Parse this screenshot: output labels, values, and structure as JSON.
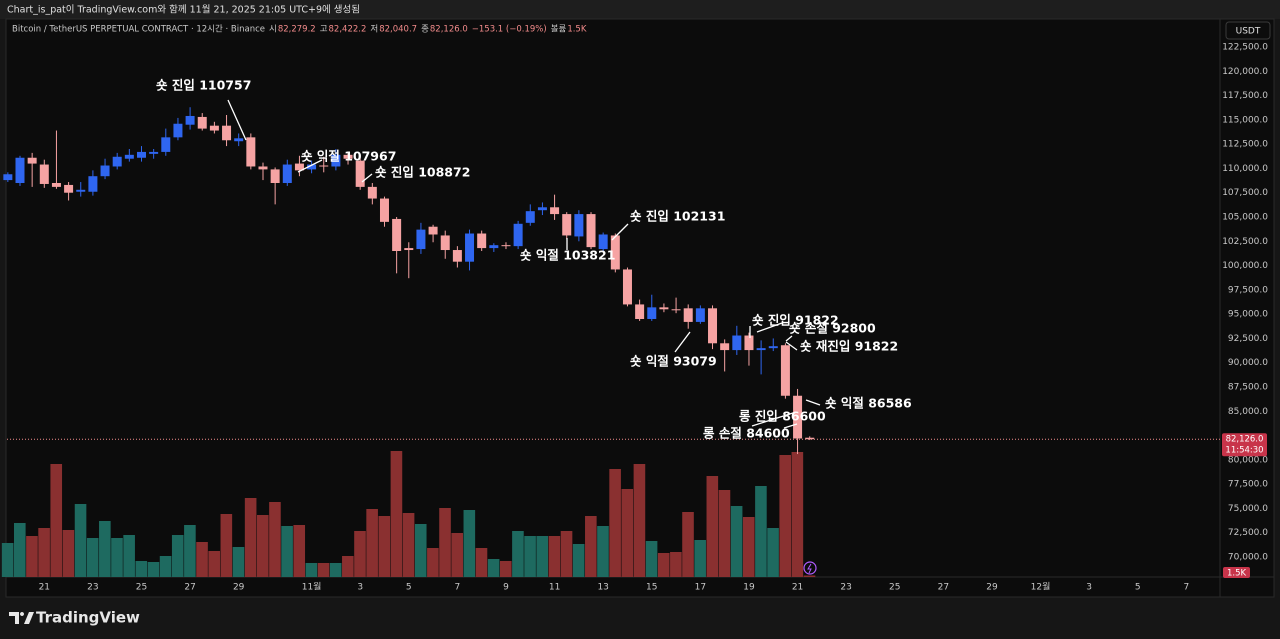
{
  "header": {
    "caption": "Chart_is_pat이 TradingView.com와 함께 11월 21, 2025 21:05 UTC+9에 생성됨",
    "brand": "TradingView"
  },
  "chart_data": {
    "type": "candlestick",
    "title": "Bitcoin / TetherUS PERPETUAL CONTRACT · 12시간 · Binance",
    "legend": {
      "items": [
        {
          "label": "시",
          "value": "82,279.2"
        },
        {
          "label": "고",
          "value": "82,422.2"
        },
        {
          "label": "저",
          "value": "82,040.7"
        },
        {
          "label": "종",
          "value": "82,126.0"
        }
      ],
      "change": "−153.1 (−0.19%)",
      "volume_name": "볼륨",
      "volume_value": "1.5K"
    },
    "currency": "USDT",
    "countdown": "11:54:30",
    "open": [
      108800,
      108500,
      111100,
      110400,
      108500,
      108300,
      107600,
      107600,
      109200,
      110200,
      111000,
      111100,
      111500,
      111700,
      113200,
      114500,
      115300,
      114400,
      114400,
      112800,
      113200,
      110200,
      109900,
      108500,
      110500,
      109900,
      110300,
      110200,
      111400,
      110800,
      108100,
      106900,
      104800,
      101800,
      101700,
      104000,
      103100,
      101600,
      100400,
      103300,
      101800,
      102100,
      102000,
      104400,
      105700,
      106000,
      105300,
      103000,
      105300,
      101700,
      103100,
      99600,
      96000,
      94500,
      95700,
      95500,
      95600,
      94200,
      95600,
      92000,
      91300,
      92800,
      91300,
      91500,
      91800,
      86600,
      82279.2
    ],
    "high": [
      109600,
      111300,
      111600,
      110900,
      113900,
      108600,
      108600,
      109800,
      111000,
      111600,
      112000,
      112300,
      112000,
      114100,
      115200,
      116300,
      115700,
      114800,
      115500,
      113600,
      113600,
      110600,
      110100,
      110900,
      111300,
      110800,
      111200,
      112000,
      111700,
      111200,
      108500,
      107100,
      105000,
      102400,
      104400,
      104200,
      103600,
      102000,
      103700,
      103600,
      102300,
      102400,
      104600,
      106300,
      106500,
      107300,
      105500,
      105700,
      105500,
      103400,
      103300,
      99800,
      96500,
      97000,
      96100,
      96700,
      96000,
      95900,
      95900,
      92400,
      93800,
      93100,
      92300,
      92500,
      92000,
      87300,
      82422.2
    ],
    "low": [
      108600,
      108200,
      108100,
      108000,
      107900,
      106700,
      107100,
      107200,
      108900,
      109900,
      110700,
      110700,
      111000,
      111300,
      112900,
      114000,
      113900,
      113600,
      112300,
      112300,
      109900,
      108800,
      106300,
      108200,
      109200,
      109500,
      109600,
      109800,
      110400,
      107800,
      106300,
      104000,
      99200,
      98700,
      101200,
      102400,
      100700,
      99800,
      99500,
      101500,
      101400,
      101700,
      101700,
      104100,
      105200,
      104700,
      102700,
      102500,
      101700,
      101400,
      99300,
      95800,
      94300,
      94300,
      95200,
      95100,
      93500,
      94000,
      91400,
      89100,
      90800,
      89700,
      88800,
      91200,
      86300,
      80600,
      82040.7
    ],
    "close": [
      109400,
      111100,
      110500,
      108400,
      108100,
      107500,
      107800,
      109200,
      110300,
      111200,
      111400,
      111700,
      111700,
      113200,
      114600,
      115400,
      114100,
      113900,
      112900,
      113100,
      110200,
      109900,
      108500,
      110400,
      109800,
      110400,
      110200,
      111400,
      111000,
      108100,
      106900,
      104500,
      101500,
      101600,
      103700,
      103200,
      101600,
      100400,
      103300,
      101800,
      102100,
      102000,
      104300,
      105600,
      106000,
      105300,
      103100,
      105300,
      101900,
      103200,
      99600,
      96000,
      94500,
      95700,
      95500,
      95400,
      94200,
      95600,
      92000,
      91300,
      92800,
      91300,
      91500,
      91700,
      86600,
      82200,
      82126
    ],
    "volume": [
      34,
      54,
      41,
      49,
      113,
      47,
      73,
      39,
      56,
      39,
      42,
      16,
      15,
      21,
      42,
      52,
      35,
      26,
      63,
      30,
      79,
      62,
      75,
      51,
      52,
      14,
      14,
      14,
      21,
      46,
      68,
      61,
      126,
      64,
      53,
      29,
      69,
      44,
      67,
      29,
      18,
      16,
      46,
      41,
      41,
      41,
      46,
      33,
      61,
      51,
      108,
      88,
      113,
      36,
      24,
      25,
      65,
      37,
      101,
      87,
      71,
      60,
      91,
      49,
      122,
      125,
      1.5
    ],
    "up_color": "#2f66f0",
    "down_color": "#f6a3a3",
    "volume_up_color": "#1e6a60",
    "volume_down_color": "#8a3030",
    "grid": false,
    "ylim": [
      67942,
      125279
    ],
    "yticks": [
      {
        "value": 122500,
        "label": "122,500.0"
      },
      {
        "value": 120000,
        "label": "120,000.0"
      },
      {
        "value": 117500,
        "label": "117,500.0"
      },
      {
        "value": 115000,
        "label": "115,000.0"
      },
      {
        "value": 112500,
        "label": "112,500.0"
      },
      {
        "value": 110000,
        "label": "110,000.0"
      },
      {
        "value": 107500,
        "label": "107,500.0"
      },
      {
        "value": 105000,
        "label": "105,000.0"
      },
      {
        "value": 102500,
        "label": "102,500.0"
      },
      {
        "value": 100000,
        "label": "100,000.0"
      },
      {
        "value": 97500,
        "label": "97,500.0"
      },
      {
        "value": 95000,
        "label": "95,000.0"
      },
      {
        "value": 92500,
        "label": "92,500.0"
      },
      {
        "value": 90000,
        "label": "90,000.0"
      },
      {
        "value": 87500,
        "label": "87,500.0"
      },
      {
        "value": 85000,
        "label": "85,000.0"
      },
      {
        "value": 80000,
        "label": "80,000.0"
      },
      {
        "value": 77500,
        "label": "77,500.0"
      },
      {
        "value": 75000,
        "label": "75,000.0"
      },
      {
        "value": 72500,
        "label": "72,500.0"
      },
      {
        "value": 70000,
        "label": "70,000.0"
      }
    ],
    "xlim": [
      -0.07,
      99.77
    ],
    "xticks": [
      {
        "value": 3,
        "label": "21"
      },
      {
        "value": 7,
        "label": "23"
      },
      {
        "value": 11,
        "label": "25"
      },
      {
        "value": 15,
        "label": "27"
      },
      {
        "value": 19,
        "label": "29"
      },
      {
        "value": 25,
        "label": "11월"
      },
      {
        "value": 29,
        "label": "3"
      },
      {
        "value": 33,
        "label": "5"
      },
      {
        "value": 37,
        "label": "7"
      },
      {
        "value": 41,
        "label": "9"
      },
      {
        "value": 45,
        "label": "11"
      },
      {
        "value": 49,
        "label": "13"
      },
      {
        "value": 53,
        "label": "15"
      },
      {
        "value": 57,
        "label": "17"
      },
      {
        "value": 61,
        "label": "19"
      },
      {
        "value": 65,
        "label": "21"
      },
      {
        "value": 69,
        "label": "23"
      },
      {
        "value": 73,
        "label": "25"
      },
      {
        "value": 77,
        "label": "27"
      },
      {
        "value": 81,
        "label": "29"
      },
      {
        "value": 85,
        "label": "12월"
      },
      {
        "value": 89,
        "label": "3"
      },
      {
        "value": 93,
        "label": "5"
      },
      {
        "value": 97,
        "label": "7"
      }
    ],
    "annotations": [
      "숏 진입 110757",
      "숏 익절 107967",
      "숏 진입 108872",
      "숏 익절 103821",
      "숏 진입 102131",
      "숏 익절 93079",
      "숏 진입 91822",
      "숏 손절 92800",
      "숏 재진입 91822",
      "숏 익절 86586",
      "롱 진입 86600",
      "롱 손절 84600"
    ]
  }
}
